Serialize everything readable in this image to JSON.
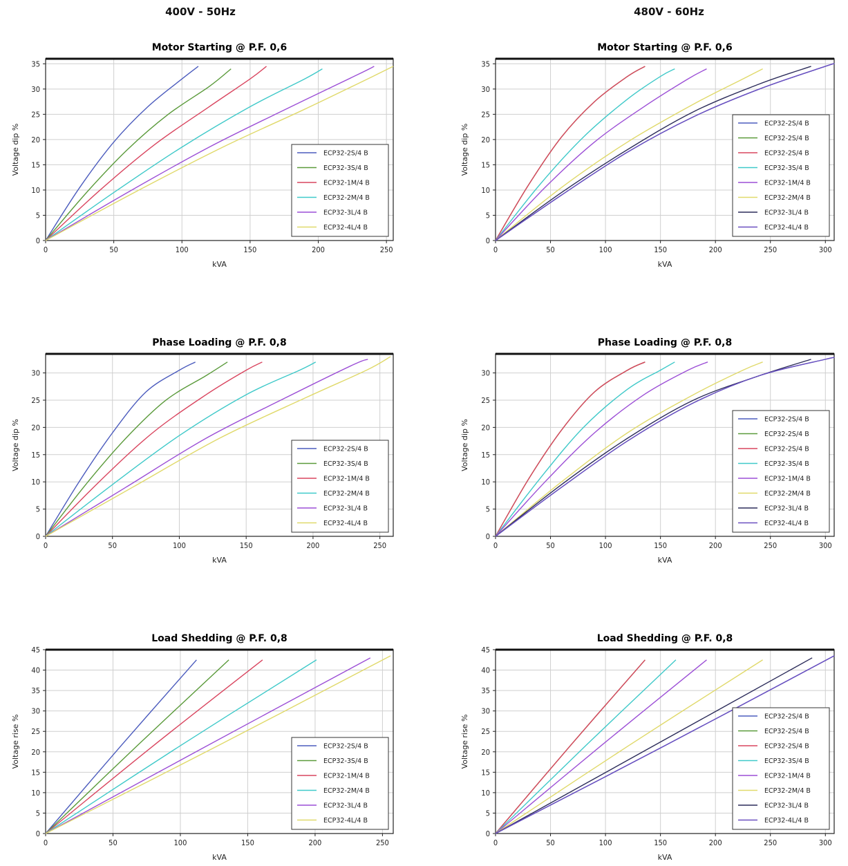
{
  "header": {
    "left_title": "400V - 50Hz",
    "right_title": "480V - 60Hz"
  },
  "chart_data": [
    {
      "type": "line",
      "title": "Motor Starting @ P.F. 0,6",
      "xlabel": "kVA",
      "ylabel": "Voltage dip %",
      "xlim": [
        0,
        255
      ],
      "ylim": [
        0,
        36
      ],
      "xticks": [
        0,
        50,
        100,
        150,
        200,
        250
      ],
      "yticks": [
        0,
        5,
        10,
        15,
        20,
        25,
        30,
        35
      ],
      "grid": true,
      "legend_position": "bottom-right",
      "series": [
        {
          "name": "ECP32-2S/4 B",
          "color": "#4b5bbd",
          "x": [
            0,
            25,
            50,
            75,
            100,
            112
          ],
          "y": [
            0,
            10.5,
            19.5,
            26.5,
            32,
            34.5
          ]
        },
        {
          "name": "ECP32-3S/4 B",
          "color": "#5a9a3a",
          "x": [
            0,
            30,
            60,
            90,
            120,
            136
          ],
          "y": [
            0,
            9.5,
            18,
            25,
            30.5,
            34
          ]
        },
        {
          "name": "ECP32-1M/4 B",
          "color": "#d9455f",
          "x": [
            0,
            40,
            80,
            120,
            150,
            162
          ],
          "y": [
            0,
            10,
            19,
            26.5,
            32,
            34.5
          ]
        },
        {
          "name": "ECP32-2M/4 B",
          "color": "#3fc9c9",
          "x": [
            0,
            50,
            100,
            150,
            190,
            203
          ],
          "y": [
            0,
            9.5,
            18.5,
            26.5,
            32,
            34
          ]
        },
        {
          "name": "ECP32-3L/4 B",
          "color": "#9c4fd6",
          "x": [
            0,
            60,
            120,
            180,
            230,
            241
          ],
          "y": [
            0,
            9.5,
            18.5,
            26.5,
            33,
            34.5
          ]
        },
        {
          "name": "ECP32-4L/4 B",
          "color": "#e0d96a",
          "x": [
            0,
            65,
            130,
            190,
            240,
            255
          ],
          "y": [
            0,
            9.5,
            18.5,
            26,
            32.5,
            34.5
          ]
        }
      ]
    },
    {
      "type": "line",
      "title": "Motor Starting @ P.F. 0,6",
      "xlabel": "kVA",
      "ylabel": "Voltage dip %",
      "xlim": [
        0,
        308
      ],
      "ylim": [
        0,
        36
      ],
      "xticks": [
        0,
        50,
        100,
        150,
        200,
        250,
        300
      ],
      "yticks": [
        0,
        5,
        10,
        15,
        20,
        25,
        30,
        35
      ],
      "grid": true,
      "legend_position": "bottom-right",
      "series": [
        {
          "name": "ECP32-2S/4 B",
          "color": "#4b5bbd",
          "x": [
            0,
            60,
            120,
            180,
            240,
            300,
            308
          ],
          "y": [
            0,
            9,
            17.5,
            24.5,
            30,
            34.5,
            35
          ]
        },
        {
          "name": "ECP32-2S/4 B",
          "color": "#5a9a3a",
          "x": [
            0,
            30,
            60,
            90,
            120,
            136
          ],
          "y": [
            0,
            11,
            20.5,
            27.5,
            32.5,
            34.5
          ]
        },
        {
          "name": "ECP32-2S/4 B",
          "color": "#d9455f",
          "x": [
            0,
            30,
            60,
            90,
            120,
            136
          ],
          "y": [
            0,
            11,
            20.5,
            27.5,
            32.5,
            34.5
          ]
        },
        {
          "name": "ECP32-3S/4 B",
          "color": "#3fc9c9",
          "x": [
            0,
            40,
            80,
            120,
            150,
            163
          ],
          "y": [
            0,
            11,
            20.5,
            28,
            32.5,
            34
          ]
        },
        {
          "name": "ECP32-1M/4 B",
          "color": "#9c4fd6",
          "x": [
            0,
            45,
            90,
            135,
            175,
            192
          ],
          "y": [
            0,
            10.5,
            19.5,
            26.5,
            32,
            34
          ]
        },
        {
          "name": "ECP32-2M/4 B",
          "color": "#e0d96a",
          "x": [
            0,
            60,
            120,
            180,
            225,
            243
          ],
          "y": [
            0,
            10.5,
            19.5,
            27,
            32,
            34
          ]
        },
        {
          "name": "ECP32-3L/4 B",
          "color": "#2c2c5a",
          "x": [
            0,
            60,
            120,
            180,
            240,
            287
          ],
          "y": [
            0,
            9.5,
            18,
            25.5,
            31,
            34.5
          ]
        },
        {
          "name": "ECP32-4L/4 B",
          "color": "#6a4fc0",
          "x": [
            0,
            60,
            120,
            180,
            240,
            300,
            308
          ],
          "y": [
            0,
            9,
            17.5,
            24.5,
            30,
            34.5,
            35
          ]
        }
      ]
    },
    {
      "type": "line",
      "title": "Phase Loading @ P.F. 0,8",
      "xlabel": "kVA",
      "ylabel": "Voltage dip %",
      "xlim": [
        0,
        260
      ],
      "ylim": [
        0,
        33.5
      ],
      "xticks": [
        0,
        50,
        100,
        150,
        200,
        250
      ],
      "yticks": [
        0,
        5,
        10,
        15,
        20,
        25,
        30
      ],
      "grid": true,
      "legend_position": "bottom-right",
      "series": [
        {
          "name": "ECP32-2S/4 B",
          "color": "#4b5bbd",
          "x": [
            0,
            25,
            50,
            75,
            100,
            112
          ],
          "y": [
            0,
            10,
            19,
            26.5,
            30.5,
            32
          ]
        },
        {
          "name": "ECP32-3S/4 B",
          "color": "#5a9a3a",
          "x": [
            0,
            30,
            60,
            90,
            120,
            136
          ],
          "y": [
            0,
            9.5,
            18,
            25,
            29.5,
            32
          ]
        },
        {
          "name": "ECP32-1M/4 B",
          "color": "#d9455f",
          "x": [
            0,
            40,
            80,
            120,
            150,
            162
          ],
          "y": [
            0,
            10,
            19,
            26,
            30.5,
            32
          ]
        },
        {
          "name": "ECP32-2M/4 B",
          "color": "#3fc9c9",
          "x": [
            0,
            50,
            100,
            150,
            190,
            202
          ],
          "y": [
            0,
            9.5,
            18.5,
            26,
            30.5,
            32
          ]
        },
        {
          "name": "ECP32-3L/4 B",
          "color": "#9c4fd6",
          "x": [
            0,
            60,
            120,
            180,
            230,
            241
          ],
          "y": [
            0,
            9,
            18,
            25.5,
            31.5,
            32.5
          ]
        },
        {
          "name": "ECP32-4L/4 B",
          "color": "#e0d96a",
          "x": [
            0,
            65,
            130,
            195,
            240,
            258
          ],
          "y": [
            0,
            9,
            18,
            25.5,
            30.5,
            33
          ]
        }
      ]
    },
    {
      "type": "line",
      "title": "Phase Loading @ P.F. 0,8",
      "xlabel": "kVA",
      "ylabel": "Voltage dip %",
      "xlim": [
        0,
        308
      ],
      "ylim": [
        0,
        33.5
      ],
      "xticks": [
        0,
        50,
        100,
        150,
        200,
        250,
        300
      ],
      "yticks": [
        0,
        5,
        10,
        15,
        20,
        25,
        30
      ],
      "grid": true,
      "legend_position": "bottom-right",
      "series": [
        {
          "name": "ECP32-2S/4 B",
          "color": "#4b5bbd",
          "x": [
            0,
            60,
            120,
            180,
            240,
            300,
            308
          ],
          "y": [
            0,
            9,
            17.5,
            24.5,
            29.5,
            32.5,
            32.8
          ]
        },
        {
          "name": "ECP32-2S/4 B",
          "color": "#5a9a3a",
          "x": [
            0,
            30,
            60,
            90,
            120,
            136
          ],
          "y": [
            0,
            10.5,
            19.5,
            26.5,
            30.5,
            32
          ]
        },
        {
          "name": "ECP32-2S/4 B",
          "color": "#d9455f",
          "x": [
            0,
            30,
            60,
            90,
            120,
            136
          ],
          "y": [
            0,
            10.5,
            19.5,
            26.5,
            30.5,
            32
          ]
        },
        {
          "name": "ECP32-3S/4 B",
          "color": "#3fc9c9",
          "x": [
            0,
            40,
            80,
            120,
            150,
            163
          ],
          "y": [
            0,
            10.5,
            20,
            27,
            30.5,
            32
          ]
        },
        {
          "name": "ECP32-1M/4 B",
          "color": "#9c4fd6",
          "x": [
            0,
            45,
            90,
            135,
            175,
            193
          ],
          "y": [
            0,
            10,
            19,
            26,
            30.5,
            32
          ]
        },
        {
          "name": "ECP32-2M/4 B",
          "color": "#e0d96a",
          "x": [
            0,
            60,
            120,
            180,
            225,
            243
          ],
          "y": [
            0,
            10,
            19,
            26,
            30.5,
            32
          ]
        },
        {
          "name": "ECP32-3L/4 B",
          "color": "#2c2c5a",
          "x": [
            0,
            60,
            120,
            180,
            240,
            287
          ],
          "y": [
            0,
            9.5,
            18,
            25,
            29.5,
            32.5
          ]
        },
        {
          "name": "ECP32-4L/4 B",
          "color": "#6a4fc0",
          "x": [
            0,
            60,
            120,
            180,
            240,
            300,
            308
          ],
          "y": [
            0,
            9,
            17.5,
            24.5,
            29.5,
            32.5,
            32.8
          ]
        }
      ]
    },
    {
      "type": "line",
      "title": "Load Shedding @ P.F. 0,8",
      "xlabel": "kVA",
      "ylabel": "Voltage rise %",
      "xlim": [
        0,
        258
      ],
      "ylim": [
        0,
        45
      ],
      "xticks": [
        0,
        50,
        100,
        150,
        200,
        250
      ],
      "yticks": [
        0,
        5,
        10,
        15,
        20,
        25,
        30,
        35,
        40,
        45
      ],
      "grid": true,
      "legend_position": "bottom-right",
      "series": [
        {
          "name": "ECP32-2S/4 B",
          "color": "#4b5bbd",
          "x": [
            0,
            56,
            112
          ],
          "y": [
            0,
            21.5,
            42.5
          ]
        },
        {
          "name": "ECP32-3S/4 B",
          "color": "#5a9a3a",
          "x": [
            0,
            68,
            136
          ],
          "y": [
            0,
            21.5,
            42.5
          ]
        },
        {
          "name": "ECP32-1M/4 B",
          "color": "#d9455f",
          "x": [
            0,
            80,
            161
          ],
          "y": [
            0,
            21.5,
            42.5
          ]
        },
        {
          "name": "ECP32-2M/4 B",
          "color": "#3fc9c9",
          "x": [
            0,
            100,
            201
          ],
          "y": [
            0,
            21.5,
            42.5
          ]
        },
        {
          "name": "ECP32-3L/4 B",
          "color": "#9c4fd6",
          "x": [
            0,
            120,
            241
          ],
          "y": [
            0,
            21.5,
            43
          ]
        },
        {
          "name": "ECP32-4L/4 B",
          "color": "#e0d96a",
          "x": [
            0,
            128,
            256
          ],
          "y": [
            0,
            21.5,
            43.5
          ]
        }
      ]
    },
    {
      "type": "line",
      "title": "Load Shedding @ P.F. 0,8",
      "xlabel": "kVA",
      "ylabel": "Voltage rise %",
      "xlim": [
        0,
        308
      ],
      "ylim": [
        0,
        45
      ],
      "xticks": [
        0,
        50,
        100,
        150,
        200,
        250,
        300
      ],
      "yticks": [
        0,
        5,
        10,
        15,
        20,
        25,
        30,
        35,
        40,
        45
      ],
      "grid": true,
      "legend_position": "bottom-right",
      "series": [
        {
          "name": "ECP32-2S/4 B",
          "color": "#4b5bbd",
          "x": [
            0,
            154,
            308
          ],
          "y": [
            0,
            21.5,
            43.5
          ]
        },
        {
          "name": "ECP32-2S/4 B",
          "color": "#5a9a3a",
          "x": [
            0,
            68,
            136
          ],
          "y": [
            0,
            21.5,
            42.5
          ]
        },
        {
          "name": "ECP32-2S/4 B",
          "color": "#d9455f",
          "x": [
            0,
            68,
            136
          ],
          "y": [
            0,
            21.5,
            42.5
          ]
        },
        {
          "name": "ECP32-3S/4 B",
          "color": "#3fc9c9",
          "x": [
            0,
            82,
            164
          ],
          "y": [
            0,
            21.5,
            42.5
          ]
        },
        {
          "name": "ECP32-1M/4 B",
          "color": "#9c4fd6",
          "x": [
            0,
            96,
            192
          ],
          "y": [
            0,
            21.5,
            42.5
          ]
        },
        {
          "name": "ECP32-2M/4 B",
          "color": "#e0d96a",
          "x": [
            0,
            121,
            243
          ],
          "y": [
            0,
            21.5,
            42.5
          ]
        },
        {
          "name": "ECP32-3L/4 B",
          "color": "#2c2c5a",
          "x": [
            0,
            144,
            288
          ],
          "y": [
            0,
            21.5,
            43
          ]
        },
        {
          "name": "ECP32-4L/4 B",
          "color": "#6a4fc0",
          "x": [
            0,
            154,
            308
          ],
          "y": [
            0,
            21.5,
            43.5
          ]
        }
      ]
    }
  ]
}
